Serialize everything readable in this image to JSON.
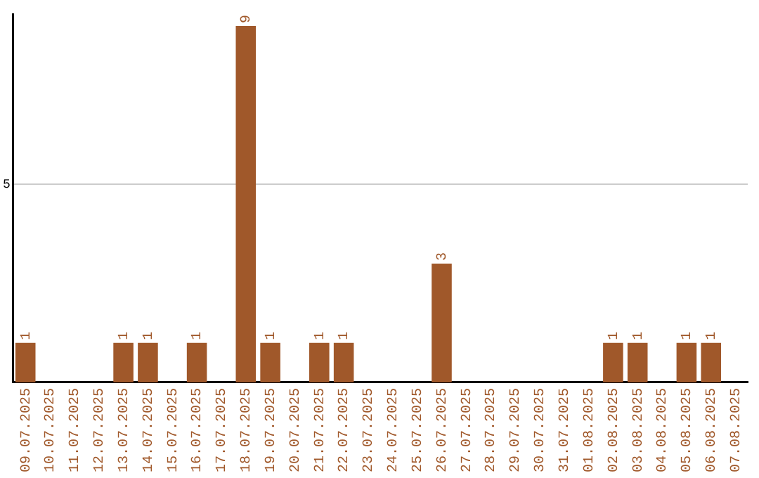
{
  "chart_data": {
    "type": "bar",
    "categories": [
      "09.07.2025",
      "10.07.2025",
      "11.07.2025",
      "12.07.2025",
      "13.07.2025",
      "14.07.2025",
      "15.07.2025",
      "16.07.2025",
      "17.07.2025",
      "18.07.2025",
      "19.07.2025",
      "20.07.2025",
      "21.07.2025",
      "22.07.2025",
      "23.07.2025",
      "24.07.2025",
      "25.07.2025",
      "26.07.2025",
      "27.07.2025",
      "28.07.2025",
      "29.07.2025",
      "30.07.2025",
      "31.07.2025",
      "01.08.2025",
      "02.08.2025",
      "03.08.2025",
      "04.08.2025",
      "05.08.2025",
      "06.08.2025",
      "07.08.2025"
    ],
    "values": [
      1,
      0,
      0,
      0,
      1,
      1,
      0,
      1,
      0,
      9,
      1,
      0,
      1,
      1,
      0,
      0,
      0,
      3,
      0,
      0,
      0,
      0,
      0,
      0,
      1,
      1,
      0,
      1,
      1,
      0
    ],
    "value_labels": [
      "1",
      null,
      null,
      null,
      "1",
      "1",
      null,
      "1",
      null,
      "9",
      "1",
      null,
      "1",
      "1",
      null,
      null,
      null,
      "3",
      null,
      null,
      null,
      null,
      null,
      null,
      "1",
      "1",
      null,
      "1",
      "1",
      null
    ],
    "color": "#a0582a",
    "ylim": [
      0,
      9.3
    ],
    "yticks": [
      5
    ],
    "grid": "y",
    "legend": false
  }
}
